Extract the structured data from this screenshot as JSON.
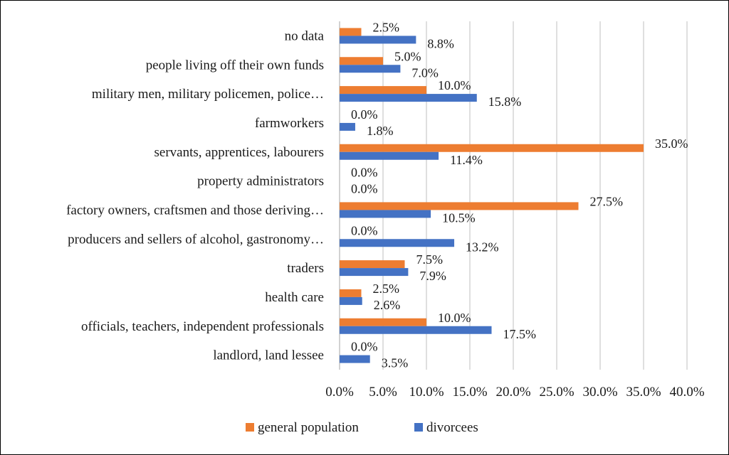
{
  "chart_data": {
    "type": "bar",
    "orientation": "horizontal",
    "categories": [
      "no data",
      "people living off their own funds",
      "military men, military policemen, police…",
      "farmworkers",
      "servants, apprentices, labourers",
      "property administrators",
      "factory owners, craftsmen and those deriving…",
      "producers and sellers of alcohol, gastronomy…",
      "traders",
      "health care",
      "officials, teachers, independent professionals",
      "landlord, land lessee"
    ],
    "series": [
      {
        "name": "general population",
        "color": "#ED7D31",
        "values": [
          2.5,
          5.0,
          10.0,
          0.0,
          35.0,
          0.0,
          27.5,
          0.0,
          7.5,
          2.5,
          10.0,
          0.0
        ],
        "labels": [
          "2.5%",
          "5.0%",
          "10.0%",
          "0.0%",
          "35.0%",
          "0.0%",
          "27.5%",
          "0.0%",
          "7.5%",
          "2.5%",
          "10.0%",
          "0.0%"
        ]
      },
      {
        "name": "divorcees",
        "color": "#4472C4",
        "values": [
          8.8,
          7.0,
          15.8,
          1.8,
          11.4,
          0.0,
          10.5,
          13.2,
          7.9,
          2.6,
          17.5,
          3.5
        ],
        "labels": [
          "8.8%",
          "7.0%",
          "15.8%",
          "1.8%",
          "11.4%",
          "0.0%",
          "10.5%",
          "13.2%",
          "7.9%",
          "2.6%",
          "17.5%",
          "3.5%"
        ]
      }
    ],
    "xlim": [
      0,
      40
    ],
    "x_ticks": [
      0,
      5,
      10,
      15,
      20,
      25,
      30,
      35,
      40
    ],
    "x_tick_labels": [
      "0.0%",
      "5.0%",
      "10.0%",
      "15.0%",
      "20.0%",
      "25.0%",
      "30.0%",
      "35.0%",
      "40.0%"
    ],
    "grid": "vertical",
    "grid_color": "#BFBFBF",
    "legend_position": "bottom",
    "title": "",
    "xlabel": "",
    "ylabel": ""
  }
}
